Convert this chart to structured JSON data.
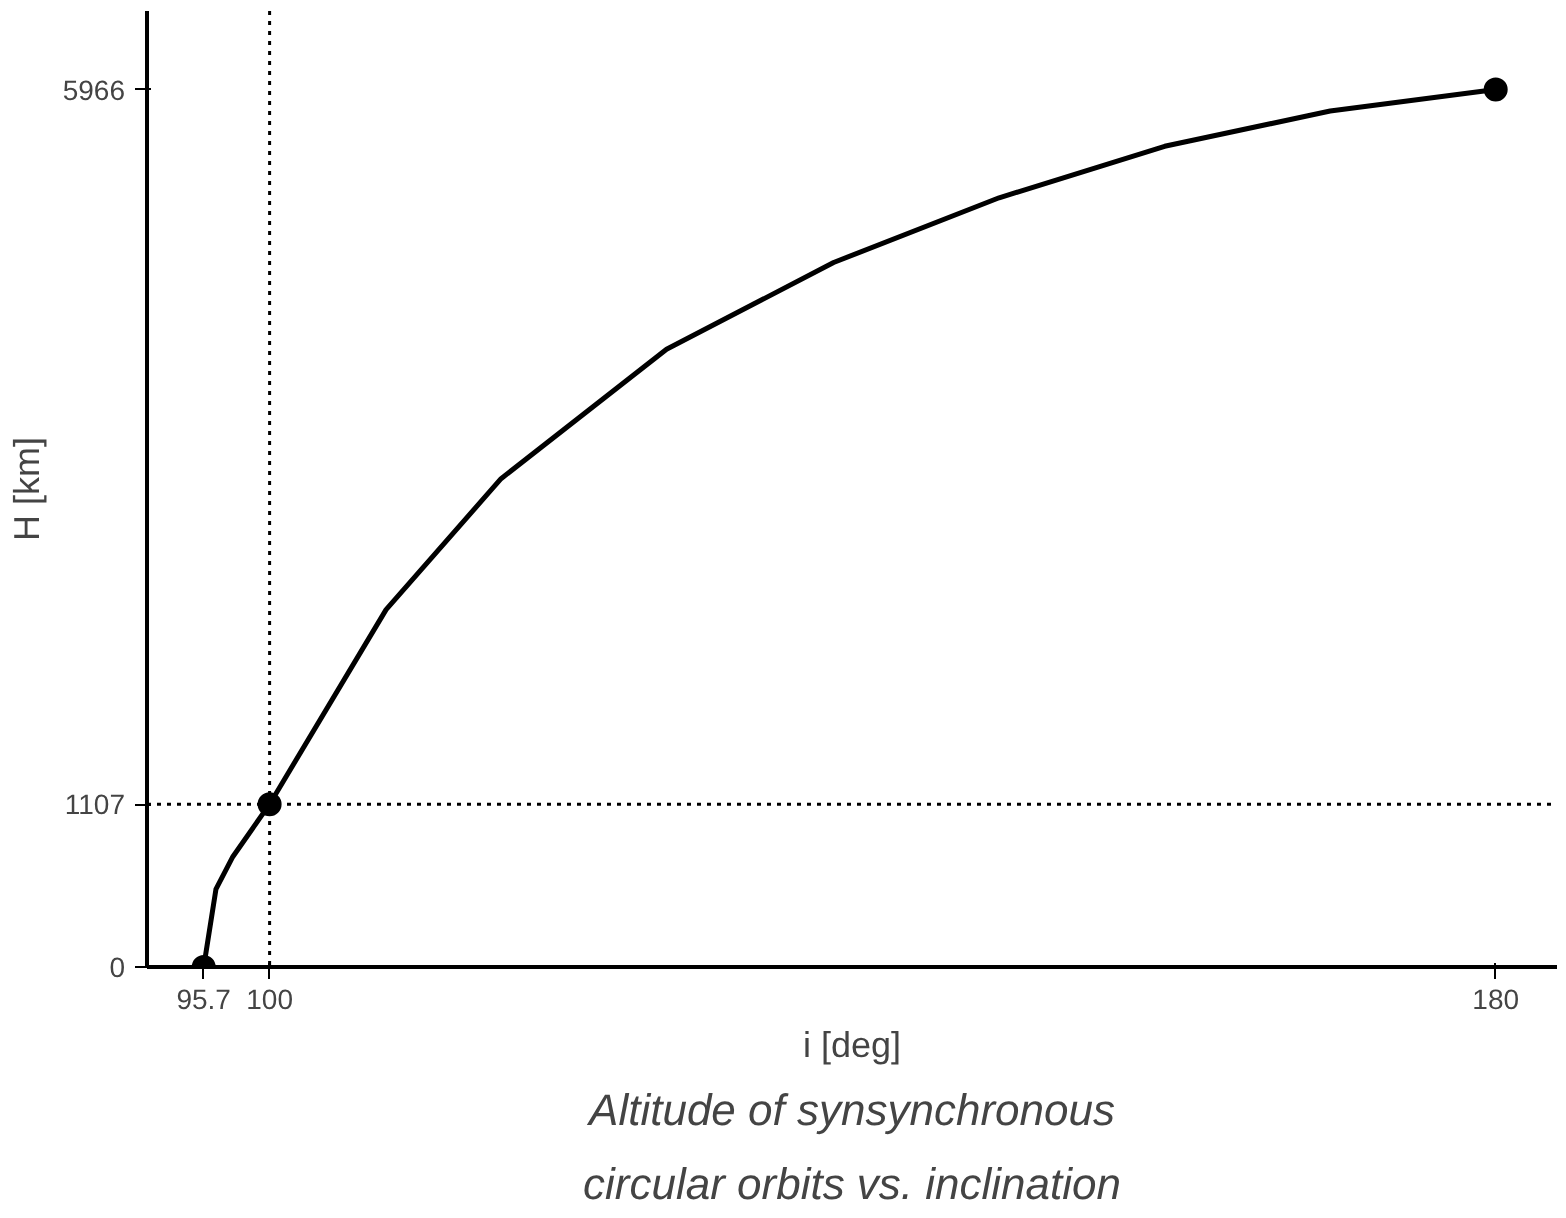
{
  "chart_data": {
    "type": "line",
    "xlabel": "i [deg]",
    "ylabel": "H [km]",
    "xlim": [
      92,
      184
    ],
    "ylim": [
      0,
      6500
    ],
    "xticks": [
      95.7,
      100,
      180
    ],
    "yticks": [
      0,
      1107,
      5966
    ],
    "grid": false,
    "series": [
      {
        "color": "#000000",
        "marker": "none",
        "x": [
          95.7,
          96.5,
          97.6,
          100,
          107.6,
          115.1,
          125.9,
          136.8,
          147.6,
          158.4,
          169.2,
          180
        ],
        "values": [
          0,
          530,
          750,
          1107,
          2430,
          3320,
          4200,
          4790,
          5230,
          5580,
          5820,
          5966
        ]
      },
      {
        "type": "scatter",
        "color": "#000000",
        "marker": "circle",
        "x": [
          95.7,
          100,
          180
        ],
        "values": [
          0,
          1107,
          5966
        ]
      }
    ],
    "ref_lines": [
      {
        "axis": "x",
        "value": 100,
        "line_style": "dotted"
      },
      {
        "axis": "y",
        "value": 1107,
        "line_style": "dotted"
      }
    ],
    "annotations": [
      "Altitude of synsynchronous",
      "circular orbits vs. inclination"
    ]
  }
}
